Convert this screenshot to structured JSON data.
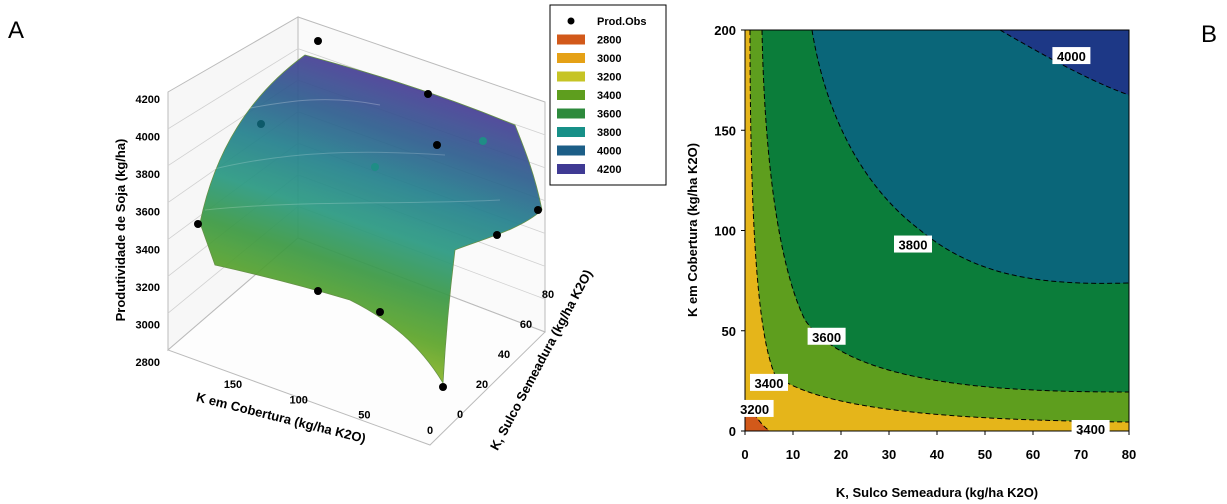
{
  "panels": {
    "a": "A",
    "b": "B"
  },
  "chart_data": [
    {
      "type": "scatter",
      "subtype": "3d-surface",
      "panel": "A",
      "zlabel": "Produtividade de Soja (kg/ha)",
      "xlabel": "K em Cobertura (kg/ha K2O)",
      "ylabel": "K, Sulco Semeadura (kg/ha K2O)",
      "z_ticks": [
        "2800",
        "3000",
        "3200",
        "3400",
        "3600",
        "3800",
        "4000",
        "4200"
      ],
      "x_ticks": [
        "150",
        "100",
        "50",
        "0"
      ],
      "y_ticks": [
        "0",
        "20",
        "40",
        "60",
        "80"
      ],
      "zlim": [
        2800,
        4200
      ],
      "xlim": [
        0,
        180
      ],
      "ylim": [
        0,
        80
      ],
      "legend": {
        "position": "top-right",
        "entries": [
          {
            "label": "Prod.Obs",
            "color": "#000000",
            "marker": "dot"
          },
          {
            "label": "2800",
            "color": "#d2591a"
          },
          {
            "label": "3000",
            "color": "#e5a116"
          },
          {
            "label": "3200",
            "color": "#c6c425"
          },
          {
            "label": "3400",
            "color": "#5e9e1e"
          },
          {
            "label": "3600",
            "color": "#2d8a3c"
          },
          {
            "label": "3800",
            "color": "#179088"
          },
          {
            "label": "4000",
            "color": "#1c5e87"
          },
          {
            "label": "4200",
            "color": "#3f3a94"
          }
        ]
      },
      "observations": [
        {
          "K_cobertura": 180,
          "K_sulco": 0,
          "prod": 3540
        },
        {
          "K_cobertura": 180,
          "K_sulco": 80,
          "prod": 4250
        },
        {
          "K_cobertura": 90,
          "K_sulco": 0,
          "prod": 3020
        },
        {
          "K_cobertura": 90,
          "K_sulco": 40,
          "prod": 3700
        },
        {
          "K_cobertura": 0,
          "K_sulco": 0,
          "prod": 2850
        },
        {
          "K_cobertura": 0,
          "K_sulco": 80,
          "prod": 3620
        },
        {
          "K_cobertura": 130,
          "K_sulco": 20,
          "prod": 4020
        },
        {
          "K_cobertura": 60,
          "K_sulco": 60,
          "prod": 3900
        },
        {
          "K_cobertura": 30,
          "K_sulco": 40,
          "prod": 3800
        },
        {
          "K_cobertura": 120,
          "K_sulco": 70,
          "prod": 4080
        },
        {
          "K_cobertura": 40,
          "K_sulco": 10,
          "prod": 3130
        }
      ]
    },
    {
      "type": "heatmap",
      "subtype": "contour",
      "panel": "B",
      "xlabel": "K, Sulco Semeadura (kg/ha K2O)",
      "ylabel": "K em Cobertura (kg/ha K2O)",
      "xlim": [
        0,
        80
      ],
      "ylim": [
        0,
        200
      ],
      "x_ticks": [
        "0",
        "10",
        "20",
        "30",
        "40",
        "50",
        "60",
        "70",
        "80"
      ],
      "y_ticks": [
        "0",
        "50",
        "100",
        "150",
        "200"
      ],
      "levels": [
        3000,
        3200,
        3400,
        3600,
        3800,
        4000
      ],
      "level_colors": [
        "#d2591a",
        "#e5b51a",
        "#5e9e1e",
        "#0b7d3a",
        "#0a6679",
        "#1d3886"
      ],
      "contour_labels": [
        {
          "text": "4000",
          "x": 68,
          "y": 187
        },
        {
          "text": "3800",
          "x": 35,
          "y": 93
        },
        {
          "text": "3600",
          "x": 17,
          "y": 47
        },
        {
          "text": "3400",
          "x": 5,
          "y": 24
        },
        {
          "text": "3400",
          "x": 72,
          "y": 1
        },
        {
          "text": "3200",
          "x": 2,
          "y": 11
        }
      ]
    }
  ]
}
